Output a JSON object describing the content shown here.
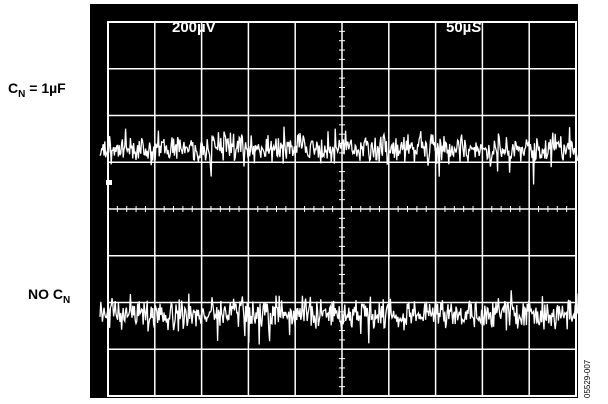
{
  "labels": {
    "volts_per_div": "200µV",
    "time_per_div_value": "50µ",
    "time_per_div_unit": "S",
    "trace1_label_main": "C",
    "trace1_label_sub": "N",
    "trace1_label_rest": " = 1µF",
    "trace2_label_main": "NO C",
    "trace2_label_sub": "N",
    "figure_id": "05529-007"
  },
  "colors": {
    "screen": "#000000",
    "grid": "#ffffff",
    "trace": "#ffffff"
  },
  "chart_data": {
    "type": "line",
    "grid": true,
    "divisions": {
      "x": 10,
      "y": 8
    },
    "volts_per_div": "200µV",
    "time_per_div": "50µS",
    "series": [
      {
        "name": "CN = 1µF",
        "description": "noise trace",
        "center_div": 1.3,
        "noise_pp_div": 0.55
      },
      {
        "name": "NO CN",
        "description": "noise trace",
        "center_div": -2.25,
        "noise_pp_div": 0.55
      }
    ]
  }
}
